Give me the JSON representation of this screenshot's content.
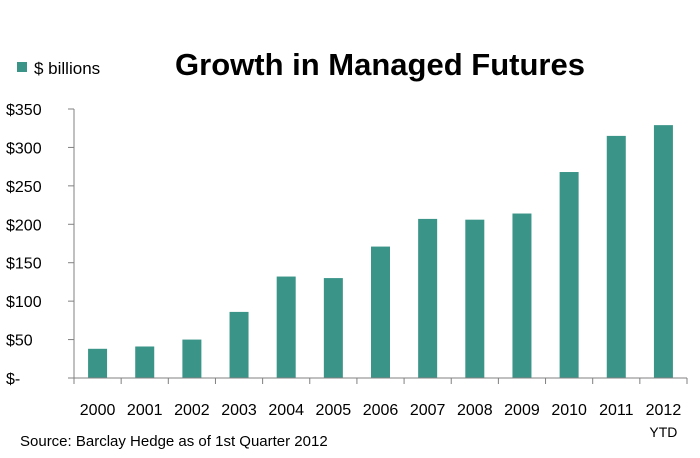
{
  "chart_data": {
    "type": "bar",
    "title": "Growth in Managed Futures",
    "source": "Source: Barclay Hedge as of 1st Quarter 2012",
    "categories": [
      "2000",
      "2001",
      "2002",
      "2003",
      "2004",
      "2005",
      "2006",
      "2007",
      "2008",
      "2009",
      "2010",
      "2011",
      "2012"
    ],
    "category_sublabels": [
      "",
      "",
      "",
      "",
      "",
      "",
      "",
      "",
      "",
      "",
      "",
      "",
      "YTD"
    ],
    "series": [
      {
        "name": "$ billions",
        "color": "#3A9488",
        "values": [
          38,
          41,
          50,
          86,
          132,
          130,
          171,
          207,
          206,
          214,
          268,
          315,
          329
        ]
      }
    ],
    "ylim": [
      0,
      350
    ],
    "yticks": [
      0,
      50,
      100,
      150,
      200,
      250,
      300,
      350
    ],
    "ytick_labels": [
      "$-",
      "$50",
      "$100",
      "$150",
      "$200",
      "$250",
      "$300",
      "$350"
    ],
    "xlabel": "",
    "ylabel": "",
    "grid": false,
    "legend_position": "top-left"
  }
}
